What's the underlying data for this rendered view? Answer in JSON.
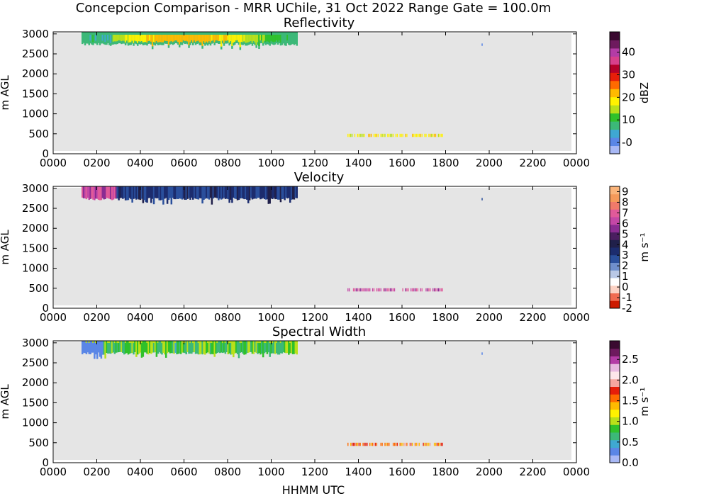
{
  "figure": {
    "suptitle": "Concepcion Comparison - MRR UChile, 31 Oct 2022 Range Gate = 100.0m",
    "xlabel": "HHMM UTC",
    "background_fill": "#e5e5e5"
  },
  "chart_data": [
    {
      "type": "heatmap",
      "title": "Reflectivity",
      "xlabel": "",
      "ylabel": "m AGL",
      "xlim": [
        0,
        2400
      ],
      "ylim": [
        0,
        3050
      ],
      "x_ticks": [
        "0000",
        "0200",
        "0400",
        "0600",
        "0800",
        "1000",
        "1200",
        "1400",
        "1600",
        "1800",
        "2000",
        "2200",
        "0000"
      ],
      "y_ticks": [
        0,
        500,
        1000,
        1500,
        2000,
        2500,
        3000
      ],
      "colorbar": {
        "label": "dBZ",
        "range": [
          -5,
          49
        ],
        "ticks": [
          "-0",
          "10",
          "20",
          "30",
          "40"
        ],
        "tick_values": [
          0,
          10,
          20,
          30,
          40
        ],
        "colors": [
          "#a8b8f5",
          "#5a86e6",
          "#3fa8d2",
          "#3cb878",
          "#2fc12a",
          "#b9e01a",
          "#fff200",
          "#ffba00",
          "#ff6a00",
          "#e61e0a",
          "#b4002a",
          "#d8408c",
          "#b43ca6",
          "#6e1a5e",
          "#3a0a30"
        ]
      },
      "echoes": [
        {
          "region": "cloud layer",
          "x": [
            130,
            1120
          ],
          "y": [
            2700,
            3050
          ],
          "core_dbz": 22,
          "edge_dbz": 8
        },
        {
          "region": "low-level returns",
          "x": [
            1350,
            1790
          ],
          "y": [
            420,
            500
          ],
          "dbz": 18
        },
        {
          "region": "isolated gate",
          "x": [
            1965,
            1970
          ],
          "y": [
            2700,
            2760
          ],
          "dbz": 0
        }
      ]
    },
    {
      "type": "heatmap",
      "title": "Velocity",
      "xlabel": "",
      "ylabel": "m AGL",
      "xlim": [
        0,
        2400
      ],
      "ylim": [
        0,
        3050
      ],
      "x_ticks": [
        "0000",
        "0200",
        "0400",
        "0600",
        "0800",
        "1000",
        "1200",
        "1400",
        "1600",
        "1800",
        "2000",
        "2200",
        "0000"
      ],
      "y_ticks": [
        0,
        500,
        1000,
        1500,
        2000,
        2500,
        3000
      ],
      "colorbar": {
        "label": "m s⁻¹",
        "range": [
          -2,
          9.5
        ],
        "ticks": [
          "-2",
          "-1",
          "0",
          "1",
          "2",
          "3",
          "4",
          "5",
          "6",
          "7",
          "8",
          "9"
        ],
        "tick_values": [
          -2,
          -1,
          0,
          1,
          2,
          3,
          4,
          5,
          6,
          7,
          8,
          9
        ],
        "colors": [
          "#cc1a00",
          "#f06a50",
          "#fcd2c4",
          "#ffffff",
          "#b9c8e6",
          "#6f8fcc",
          "#2a4f9c",
          "#1c2c6e",
          "#20204a",
          "#4a1e60",
          "#8a2c92",
          "#c447a6",
          "#e05a9a",
          "#f07a6a",
          "#f59a5a",
          "#fab47a"
        ]
      },
      "echoes": [
        {
          "region": "cloud layer",
          "x": [
            130,
            1120
          ],
          "y": [
            2700,
            3050
          ],
          "typical_velocity": 3.2
        },
        {
          "region": "low-level returns",
          "x": [
            1350,
            1790
          ],
          "y": [
            420,
            500
          ],
          "typical_velocity": 6.5
        },
        {
          "region": "isolated gate",
          "x": [
            1965,
            1970
          ],
          "y": [
            2700,
            2760
          ],
          "typical_velocity": 2.5
        }
      ]
    },
    {
      "type": "heatmap",
      "title": "Spectral Width",
      "xlabel": "HHMM UTC",
      "ylabel": "m AGL",
      "xlim": [
        0,
        2400
      ],
      "ylim": [
        0,
        3050
      ],
      "x_ticks": [
        "0000",
        "0200",
        "0400",
        "0600",
        "0800",
        "1000",
        "1200",
        "1400",
        "1600",
        "1800",
        "2000",
        "2200",
        "0000"
      ],
      "y_ticks": [
        0,
        500,
        1000,
        1500,
        2000,
        2500,
        3000
      ],
      "colorbar": {
        "label": "m s⁻¹",
        "range": [
          0,
          2.95
        ],
        "ticks": [
          "0.0",
          "0.5",
          "1.0",
          "1.5",
          "2.0",
          "2.5"
        ],
        "tick_values": [
          0,
          0.5,
          1.0,
          1.5,
          2.0,
          2.5
        ],
        "colors": [
          "#a8b8f5",
          "#5a86e6",
          "#3fa8d2",
          "#3cb878",
          "#2fc12a",
          "#b9e01a",
          "#fff200",
          "#ffba00",
          "#ff6a00",
          "#e61e0a",
          "#f6a6a0",
          "#fde6ea",
          "#e8b8e0",
          "#b43ca6",
          "#6e1a5e",
          "#3a0a30"
        ]
      },
      "echoes": [
        {
          "region": "cloud layer",
          "x": [
            130,
            1120
          ],
          "y": [
            2700,
            3050
          ],
          "typical_width": 0.8
        },
        {
          "region": "low-level returns",
          "x": [
            1350,
            1790
          ],
          "y": [
            420,
            500
          ],
          "typical_width": 1.6
        },
        {
          "region": "isolated gate",
          "x": [
            1965,
            1970
          ],
          "y": [
            2700,
            2760
          ],
          "typical_width": 0.3
        }
      ]
    }
  ]
}
